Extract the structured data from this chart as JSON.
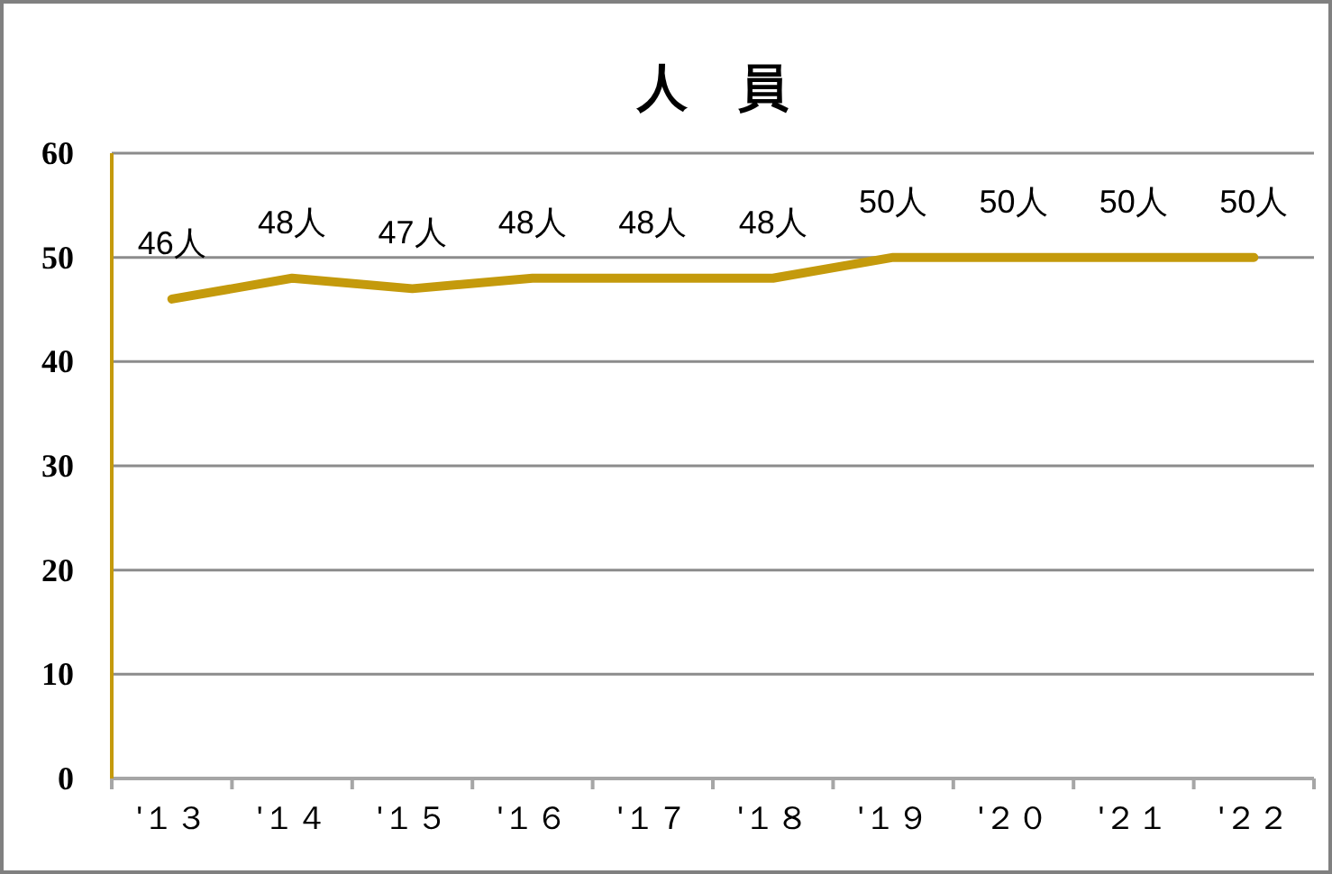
{
  "chart_data": {
    "type": "line",
    "title": "人　員",
    "categories": [
      "'１３",
      "'１４",
      "'１５",
      "'１６",
      "'１７",
      "'１８",
      "'１９",
      "'２０",
      "'２１",
      "'２２"
    ],
    "series": [
      {
        "color": "#c49a0c",
        "values": [
          46,
          48,
          47,
          48,
          48,
          48,
          50,
          50,
          50,
          50
        ],
        "value_labels": [
          "46人",
          "48人",
          "47人",
          "48人",
          "48人",
          "48人",
          "50人",
          "50人",
          "50人",
          "50人"
        ]
      }
    ],
    "ylim": [
      0,
      60
    ],
    "yticks": [
      0,
      10,
      20,
      30,
      40,
      50,
      60
    ],
    "grid": "y",
    "line_style": "solid",
    "marker": "none"
  }
}
